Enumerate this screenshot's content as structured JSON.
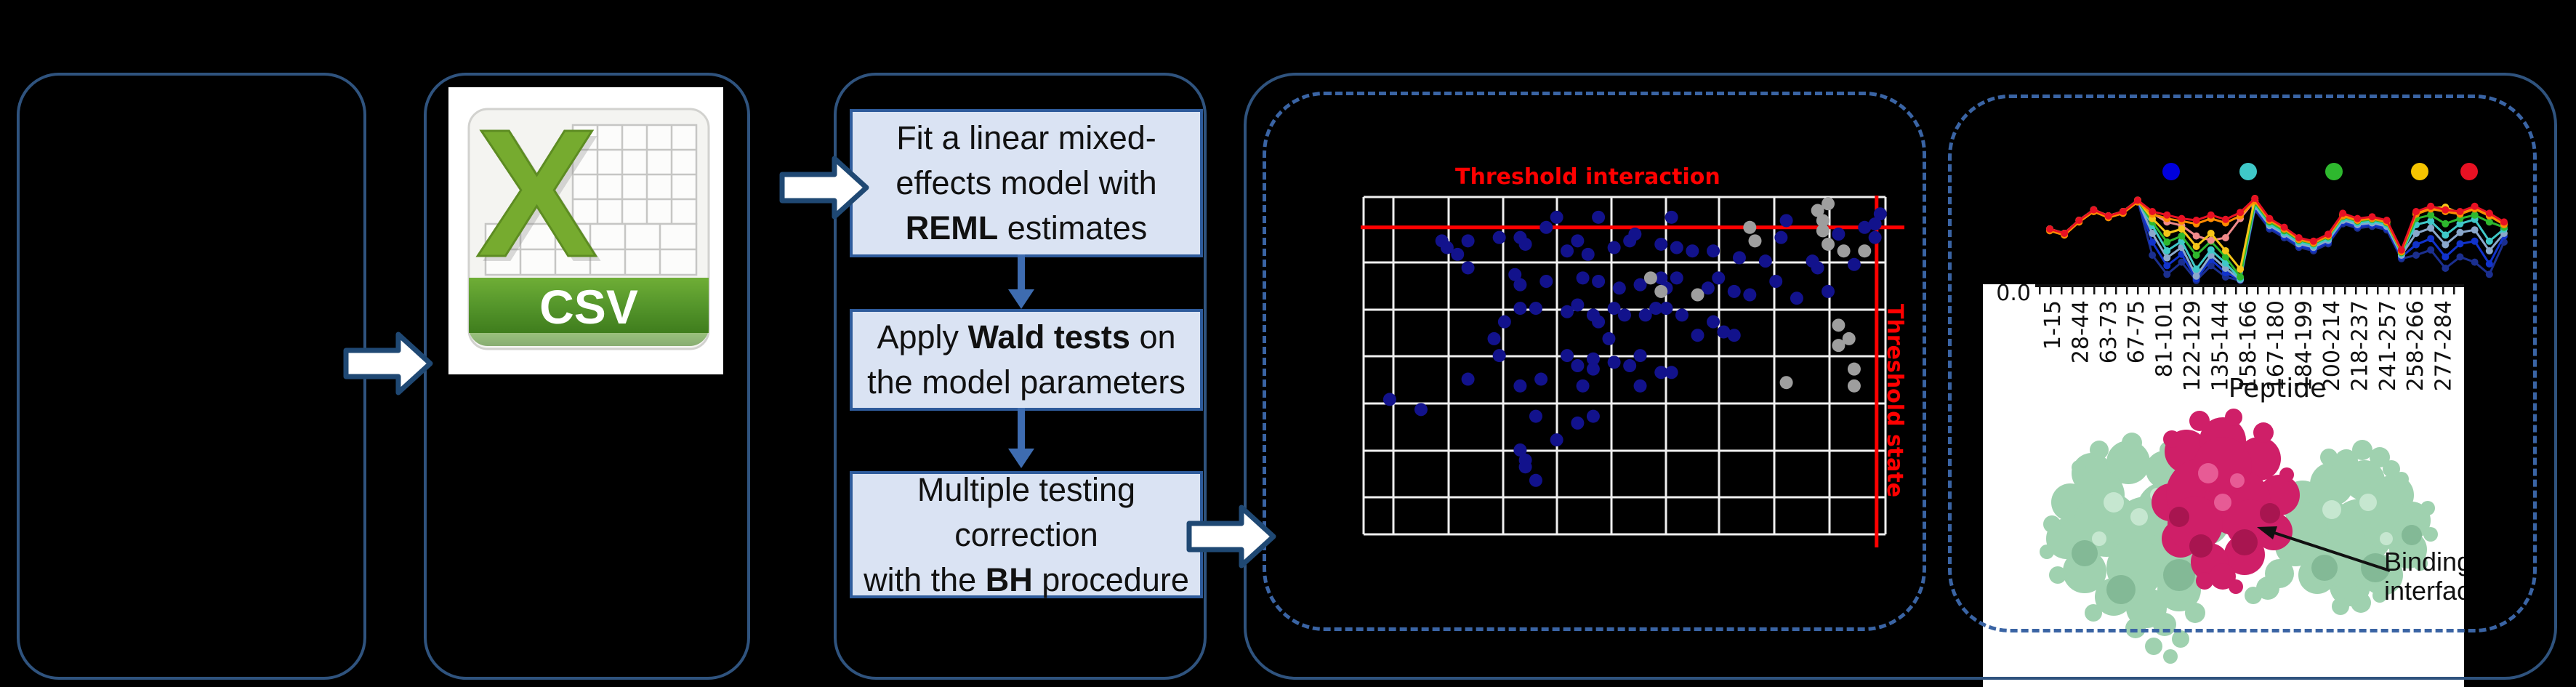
{
  "figure": {
    "background": "#000000"
  },
  "colors": {
    "panel_border": "#2f537e",
    "dashed_border": "#3a64a4",
    "flow_box_fill": "#dae3f3",
    "flow_box_border": "#2e5b9b",
    "flow_arrow": "#3e6cb0",
    "block_arrow_fill": "#ffffff",
    "block_arrow_border": "#1f4873",
    "threshold_red": "#ff0000",
    "scatter_point_blue": "#12128c",
    "scatter_point_gray": "#9e9e9e",
    "csv_green": "#76ab2f",
    "csv_banner_green": "#55962b",
    "protein_green": "#9fd1af",
    "protein_crimson": "#cf1f68"
  },
  "panels": {
    "csv": {
      "label": "CSV"
    },
    "flowchart": {
      "boxes": [
        {
          "lines": [
            [
              "Fit a linear mixed-"
            ],
            [
              "effects model with"
            ],
            [
              {
                "b": "REML"
              },
              " estimates"
            ]
          ]
        },
        {
          "lines": [
            [
              "Apply ",
              {
                "b": "Wald tests"
              },
              " on"
            ],
            [
              "the model parameters"
            ]
          ]
        },
        {
          "lines": [
            [
              "Multiple testing"
            ],
            [
              "correction"
            ],
            [
              "with the ",
              {
                "b": "BH"
              },
              " procedure"
            ]
          ]
        }
      ]
    },
    "scatter": {
      "threshold_interaction_label": "Threshold interaction",
      "threshold_state_label": "Threshold state"
    },
    "uptake": {
      "y_tick_label": "0.0",
      "x_axis_label": "Peptide",
      "binding_label_line1": "Binding",
      "binding_label_line2": "interface",
      "peptide_labels": [
        "1-15",
        "28-44",
        "63-73",
        "67-75",
        "81-101",
        "122-129",
        "135-144",
        "158-166",
        "167-180",
        "184-199",
        "200-214",
        "218-237",
        "241-257",
        "258-266",
        "277-284"
      ]
    }
  },
  "chart_data": [
    {
      "type": "scatter",
      "title": "",
      "plot_bg": "#000000",
      "grid": true,
      "axes": {
        "x": {
          "label": "",
          "tick_labels_visible": false
        },
        "y": {
          "label": "",
          "tick_labels_visible": false
        }
      },
      "units": "percent of plot area, origin at top-left",
      "annotations": [
        {
          "type": "hline",
          "label": "Threshold interaction",
          "color": "#ff0000",
          "y_pct": 9
        },
        {
          "type": "vline",
          "label": "Threshold state",
          "color": "#ff0000",
          "x_pct": 98.3
        }
      ],
      "series": [
        {
          "name": "blue points",
          "color": "#12128c",
          "marker": "circle",
          "points": [
            [
              37,
              6
            ],
            [
              45,
              6
            ],
            [
              59,
              6
            ],
            [
              35,
              9
            ],
            [
              52,
              11
            ],
            [
              81,
              7
            ],
            [
              96,
              9
            ],
            [
              99,
              5
            ],
            [
              98,
              8
            ],
            [
              15,
              13
            ],
            [
              16,
              15
            ],
            [
              18,
              17
            ],
            [
              20,
              13
            ],
            [
              26,
              12
            ],
            [
              30,
              12
            ],
            [
              31,
              14
            ],
            [
              39,
              16
            ],
            [
              41,
              13
            ],
            [
              43,
              17
            ],
            [
              48,
              15
            ],
            [
              51,
              13
            ],
            [
              57,
              14
            ],
            [
              60,
              15
            ],
            [
              63,
              16
            ],
            [
              67,
              16
            ],
            [
              72,
              18
            ],
            [
              77,
              19
            ],
            [
              80,
              12
            ],
            [
              86,
              19
            ],
            [
              20,
              21
            ],
            [
              29,
              23
            ],
            [
              30,
              26
            ],
            [
              35,
              25
            ],
            [
              42,
              24
            ],
            [
              45,
              25
            ],
            [
              49,
              27
            ],
            [
              53,
              26
            ],
            [
              57,
              24
            ],
            [
              60,
              24
            ],
            [
              58,
              27
            ],
            [
              66,
              27
            ],
            [
              68,
              24
            ],
            [
              71,
              28
            ],
            [
              74,
              29
            ],
            [
              30,
              33
            ],
            [
              33,
              33
            ],
            [
              39,
              34
            ],
            [
              41,
              32
            ],
            [
              44,
              35
            ],
            [
              45,
              37
            ],
            [
              48,
              33
            ],
            [
              50,
              35
            ],
            [
              54,
              35
            ],
            [
              56,
              33
            ],
            [
              58,
              33
            ],
            [
              61,
              35
            ],
            [
              64,
              41
            ],
            [
              67,
              37
            ],
            [
              69,
              40
            ],
            [
              71,
              41
            ],
            [
              39,
              47
            ],
            [
              41,
              50
            ],
            [
              44,
              48
            ],
            [
              44,
              51
            ],
            [
              48,
              49
            ],
            [
              51,
              50
            ],
            [
              53,
              47
            ],
            [
              57,
              52
            ],
            [
              59,
              52
            ],
            [
              34,
              54
            ],
            [
              42,
              56
            ],
            [
              44,
              65
            ],
            [
              30,
              56
            ],
            [
              25,
              42
            ],
            [
              26,
              47
            ],
            [
              27,
              37
            ],
            [
              5,
              60
            ],
            [
              11,
              63
            ],
            [
              20,
              54
            ],
            [
              30,
              75
            ],
            [
              31,
              78
            ],
            [
              33,
              65
            ],
            [
              37,
              72
            ],
            [
              41,
              67
            ],
            [
              31,
              80
            ],
            [
              33,
              84
            ],
            [
              47,
              42
            ],
            [
              53,
              56
            ],
            [
              91,
              11
            ],
            [
              87,
              21
            ],
            [
              94,
              20
            ],
            [
              98,
              12
            ],
            [
              89,
              28
            ],
            [
              83,
              30
            ],
            [
              79,
              25
            ]
          ]
        },
        {
          "name": "gray points",
          "color": "#9e9e9e",
          "marker": "circle",
          "points": [
            [
              87,
              4
            ],
            [
              88,
              7
            ],
            [
              88,
              10
            ],
            [
              89,
              14
            ],
            [
              74,
              9
            ],
            [
              75,
              13
            ],
            [
              92,
              16
            ],
            [
              96,
              16
            ],
            [
              55,
              24
            ],
            [
              57,
              28
            ],
            [
              64,
              29
            ],
            [
              91,
              38
            ],
            [
              93,
              42
            ],
            [
              91,
              44
            ],
            [
              94,
              51
            ],
            [
              81,
              55
            ],
            [
              94,
              56
            ],
            [
              89,
              2
            ]
          ]
        }
      ]
    },
    {
      "type": "line",
      "xlabel": "Peptide",
      "x_tick_labels": [
        "1-15",
        "28-44",
        "63-73",
        "67-75",
        "81-101",
        "122-129",
        "135-144",
        "158-166",
        "167-180",
        "184-199",
        "200-214",
        "218-237",
        "241-257",
        "258-266",
        "277-284"
      ],
      "x_tick_positions": [
        0,
        2,
        4,
        6,
        8,
        10,
        12,
        14,
        16,
        18,
        20,
        22,
        24,
        26,
        28
      ],
      "n_points": 32,
      "ylim": [
        0,
        1
      ],
      "y_axis": {
        "bottom_tick_label": "0.0"
      },
      "legend_marker_colors": [
        "#0000dd",
        "#3fc8c8",
        "#2eb82e",
        "#f5c400",
        "#e81123"
      ],
      "series": [
        {
          "name": "navy",
          "color": "#1b2f8f",
          "values": [
            0.6,
            0.55,
            0.7,
            0.82,
            0.75,
            0.8,
            0.93,
            0.3,
            0.08,
            0.22,
            0.01,
            0.18,
            0.05,
            0.01,
            0.82,
            0.6,
            0.5,
            0.39,
            0.35,
            0.43,
            0.66,
            0.61,
            0.63,
            0.59,
            0.26,
            0.3,
            0.36,
            0.15,
            0.28,
            0.22,
            0.08,
            0.45
          ]
        },
        {
          "name": "blue",
          "color": "#1133cc",
          "values": [
            0.6,
            0.55,
            0.7,
            0.82,
            0.75,
            0.8,
            0.93,
            0.45,
            0.18,
            0.31,
            0.03,
            0.25,
            0.1,
            0.02,
            0.84,
            0.62,
            0.52,
            0.41,
            0.37,
            0.45,
            0.68,
            0.63,
            0.65,
            0.61,
            0.28,
            0.42,
            0.49,
            0.28,
            0.43,
            0.46,
            0.2,
            0.52
          ]
        },
        {
          "name": "steel",
          "color": "#8aa8cc",
          "values": [
            0.6,
            0.55,
            0.7,
            0.82,
            0.75,
            0.8,
            0.93,
            0.55,
            0.27,
            0.39,
            0.06,
            0.3,
            0.15,
            0.02,
            0.86,
            0.64,
            0.54,
            0.43,
            0.39,
            0.47,
            0.7,
            0.65,
            0.67,
            0.63,
            0.3,
            0.55,
            0.61,
            0.42,
            0.56,
            0.59,
            0.35,
            0.55
          ]
        },
        {
          "name": "cyan",
          "color": "#3fc8c8",
          "values": [
            0.6,
            0.55,
            0.7,
            0.82,
            0.75,
            0.8,
            0.93,
            0.64,
            0.35,
            0.46,
            0.14,
            0.36,
            0.21,
            0.03,
            0.88,
            0.66,
            0.56,
            0.45,
            0.41,
            0.49,
            0.72,
            0.67,
            0.69,
            0.65,
            0.32,
            0.65,
            0.69,
            0.53,
            0.66,
            0.71,
            0.46,
            0.6
          ]
        },
        {
          "name": "green",
          "color": "#2eb82e",
          "values": [
            0.6,
            0.55,
            0.7,
            0.82,
            0.75,
            0.8,
            0.93,
            0.68,
            0.45,
            0.52,
            0.3,
            0.46,
            0.28,
            0.05,
            0.9,
            0.68,
            0.58,
            0.47,
            0.43,
            0.51,
            0.74,
            0.69,
            0.71,
            0.67,
            0.33,
            0.72,
            0.76,
            0.66,
            0.72,
            0.76,
            0.68,
            0.62
          ]
        },
        {
          "name": "salmon",
          "color": "#f08a8a",
          "values": [
            0.6,
            0.55,
            0.7,
            0.82,
            0.75,
            0.8,
            0.93,
            0.78,
            0.68,
            0.64,
            0.52,
            0.47,
            0.5,
            0.72,
            0.93,
            0.7,
            0.61,
            0.49,
            0.45,
            0.53,
            0.77,
            0.71,
            0.73,
            0.69,
            0.35,
            0.79,
            0.85,
            0.81,
            0.79,
            0.85,
            0.77,
            0.67
          ]
        },
        {
          "name": "yellow",
          "color": "#f5c518",
          "values": [
            0.6,
            0.55,
            0.7,
            0.82,
            0.75,
            0.8,
            0.93,
            0.72,
            0.55,
            0.6,
            0.4,
            0.55,
            0.35,
            0.14,
            0.95,
            0.71,
            0.61,
            0.49,
            0.45,
            0.53,
            0.77,
            0.71,
            0.73,
            0.69,
            0.35,
            0.78,
            0.84,
            0.85,
            0.78,
            0.84,
            0.76,
            0.66
          ]
        },
        {
          "name": "orange",
          "color": "#ff8c00",
          "values": [
            0.58,
            0.53,
            0.68,
            0.8,
            0.73,
            0.78,
            0.91,
            0.77,
            0.72,
            0.69,
            0.66,
            0.72,
            0.67,
            0.75,
            0.92,
            0.7,
            0.6,
            0.48,
            0.44,
            0.52,
            0.75,
            0.7,
            0.72,
            0.68,
            0.34,
            0.77,
            0.83,
            0.8,
            0.77,
            0.83,
            0.75,
            0.65
          ]
        },
        {
          "name": "red",
          "color": "#e81123",
          "values": [
            0.6,
            0.55,
            0.7,
            0.82,
            0.75,
            0.8,
            0.93,
            0.8,
            0.76,
            0.72,
            0.7,
            0.76,
            0.71,
            0.79,
            0.95,
            0.72,
            0.62,
            0.5,
            0.46,
            0.54,
            0.78,
            0.72,
            0.74,
            0.7,
            0.36,
            0.8,
            0.86,
            0.82,
            0.8,
            0.86,
            0.78,
            0.68
          ]
        }
      ]
    }
  ]
}
